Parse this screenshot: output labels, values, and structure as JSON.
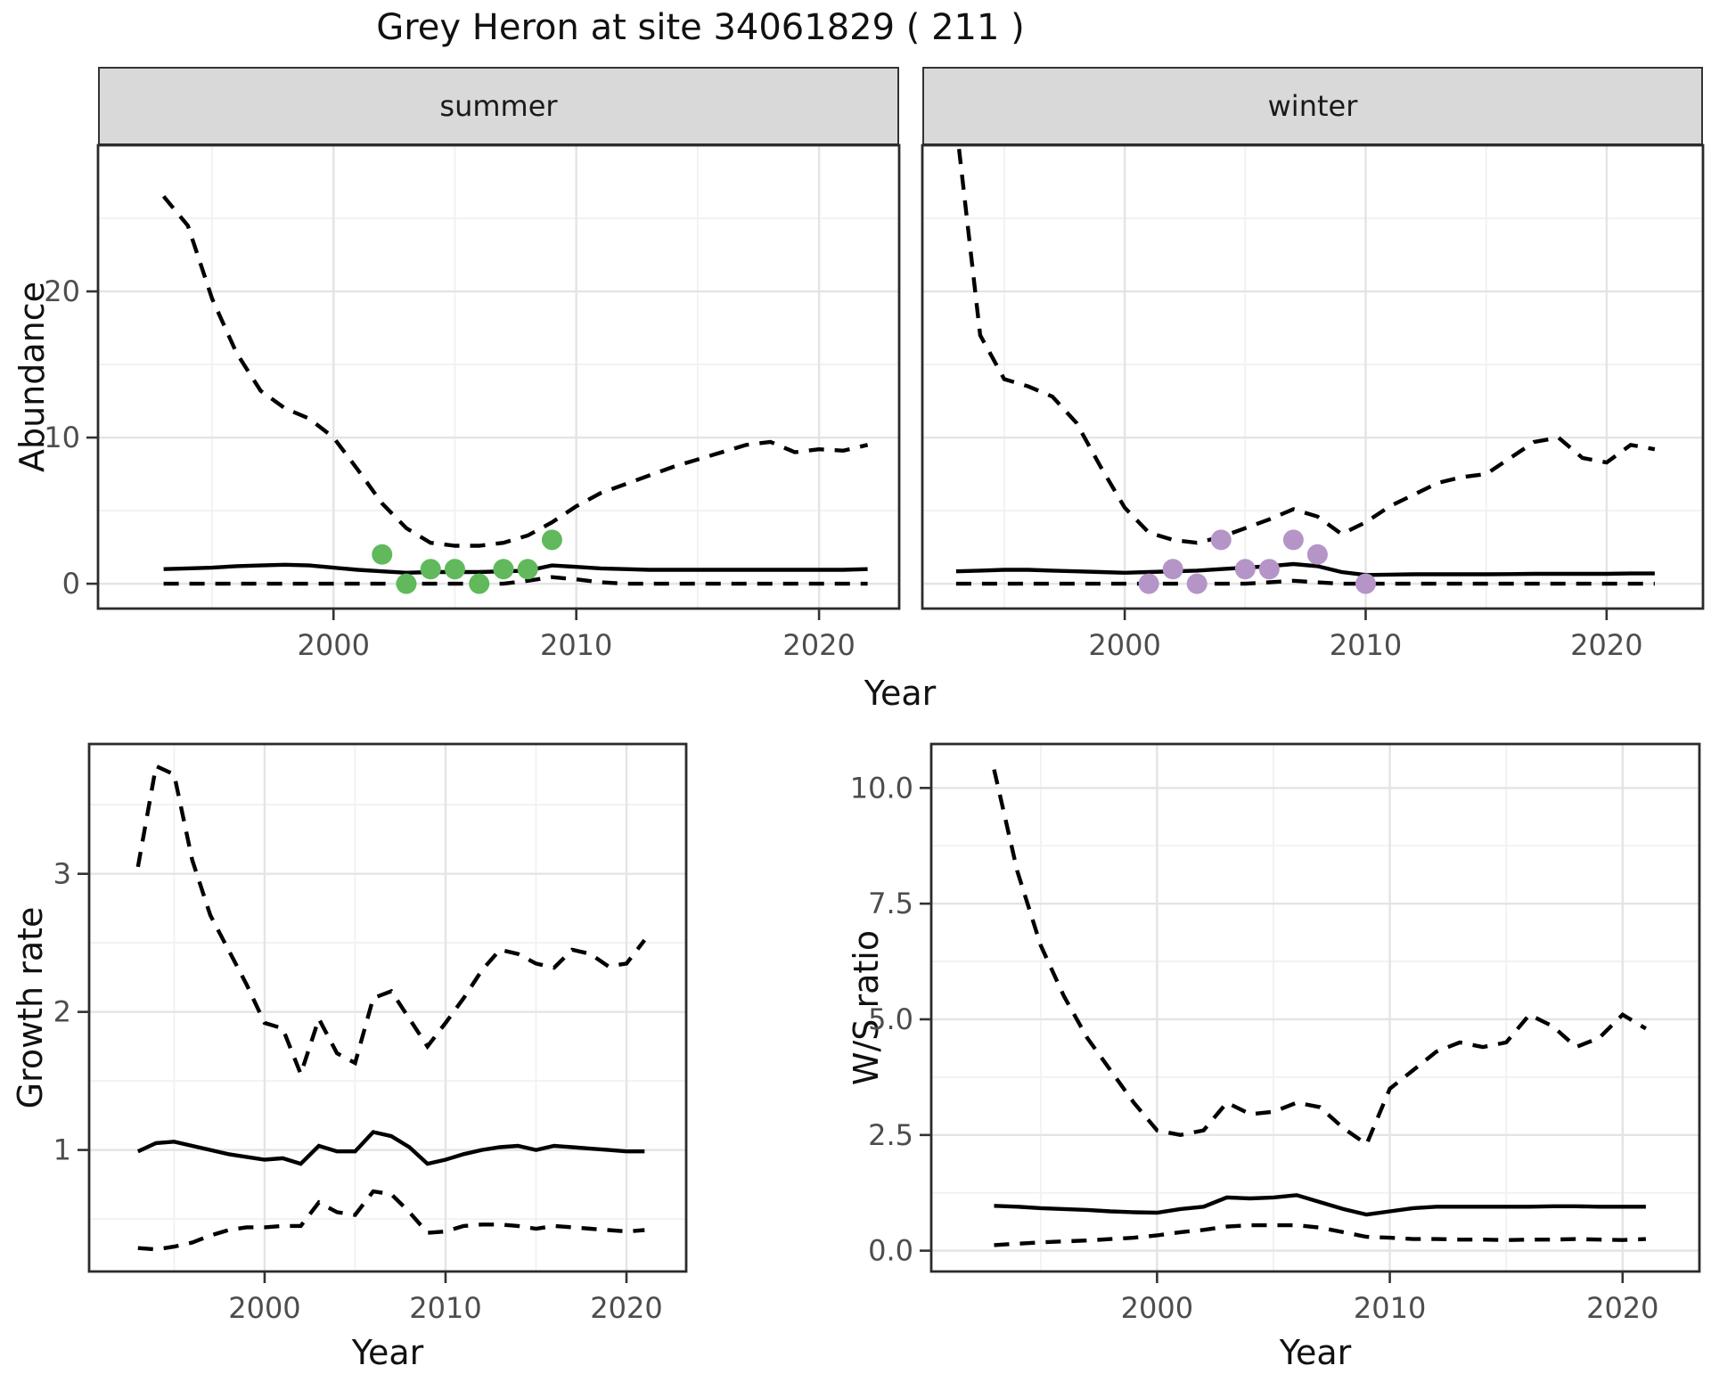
{
  "title": "Grey Heron at site 34061829 ( 211 )",
  "facets": {
    "summer_label": "summer",
    "winter_label": "winter"
  },
  "axes": {
    "x_title_top": "Year",
    "x_title_growth": "Year",
    "x_title_ws": "Year",
    "y_title_abundance": "Abundance",
    "y_title_growth": "Growth rate",
    "y_title_ws": "W/S ratio"
  },
  "colors": {
    "observation_summer": "#61b95c",
    "observation_winter": "#b594c7",
    "line": "#000000",
    "panel_border": "#2b2b2b",
    "strip_bg": "#d9d9d9",
    "grid_major": "#e4e4e4",
    "grid_minor": "#f1f1f1",
    "tick_text": "#4d4d4d",
    "tick_mark": "#333333"
  },
  "chart_data": [
    {
      "id": "summer",
      "type": "line",
      "facet": "summer",
      "xlim": [
        1990.3,
        2023.3
      ],
      "ylim": [
        -1.7,
        30.0
      ],
      "x_ticks": [
        2000,
        2010,
        2020
      ],
      "x_tick_labels": [
        "2000",
        "2010",
        "2020"
      ],
      "x_minor": [
        1995,
        2005,
        2015
      ],
      "y_ticks": [
        0,
        10,
        20
      ],
      "y_tick_labels": [
        "0",
        "10",
        "20"
      ],
      "y_minor": [
        5,
        15,
        25
      ],
      "show_y_ticks": true,
      "years": [
        1993,
        1994,
        1995,
        1996,
        1997,
        1998,
        1999,
        2000,
        2001,
        2002,
        2003,
        2004,
        2005,
        2006,
        2007,
        2008,
        2009,
        2010,
        2011,
        2012,
        2013,
        2014,
        2015,
        2016,
        2017,
        2018,
        2019,
        2020,
        2021,
        2022
      ],
      "series": [
        {
          "name": "upper_ci",
          "style": "dashed",
          "values": [
            26.5,
            24.5,
            19.5,
            15.8,
            13.2,
            12.0,
            11.3,
            10.0,
            7.8,
            5.5,
            3.8,
            2.8,
            2.6,
            2.6,
            2.8,
            3.3,
            4.2,
            5.3,
            6.2,
            6.8,
            7.4,
            8.0,
            8.5,
            9.0,
            9.5,
            9.7,
            9.0,
            9.2,
            9.1,
            9.5
          ]
        },
        {
          "name": "median",
          "style": "solid",
          "values": [
            1.0,
            1.05,
            1.1,
            1.2,
            1.25,
            1.3,
            1.25,
            1.1,
            0.95,
            0.85,
            0.75,
            0.8,
            0.8,
            0.8,
            0.85,
            0.9,
            1.25,
            1.15,
            1.05,
            1.0,
            0.95,
            0.95,
            0.95,
            0.95,
            0.95,
            0.95,
            0.95,
            0.95,
            0.95,
            1.0
          ]
        },
        {
          "name": "lower_ci",
          "style": "dashed",
          "values": [
            0,
            0,
            0,
            0,
            0,
            0,
            0,
            0,
            0,
            0,
            0,
            0,
            0,
            0,
            0,
            0.2,
            0.45,
            0.3,
            0.1,
            0,
            0,
            0,
            0,
            0,
            0,
            0,
            0,
            0,
            0,
            0
          ]
        }
      ],
      "points": {
        "name": "observations",
        "years": [
          2002,
          2003,
          2004,
          2005,
          2006,
          2007,
          2008,
          2009
        ],
        "values": [
          2,
          0,
          1,
          1,
          0,
          1,
          1,
          3
        ],
        "color_key": "observation_summer"
      }
    },
    {
      "id": "winter",
      "type": "line",
      "facet": "winter",
      "xlim": [
        1991.6,
        2024.0
      ],
      "ylim": [
        -1.7,
        30.0
      ],
      "x_ticks": [
        2000,
        2010,
        2020
      ],
      "x_tick_labels": [
        "2000",
        "2010",
        "2020"
      ],
      "x_minor": [
        1995,
        2005,
        2015
      ],
      "y_ticks": [
        0,
        10,
        20
      ],
      "y_tick_labels": [
        "0",
        "10",
        "20"
      ],
      "y_minor": [
        5,
        15,
        25
      ],
      "show_y_ticks": false,
      "years": [
        1993,
        1994,
        1995,
        1996,
        1997,
        1998,
        1999,
        2000,
        2001,
        2002,
        2003,
        2004,
        2005,
        2006,
        2007,
        2008,
        2009,
        2010,
        2011,
        2012,
        2013,
        2014,
        2015,
        2016,
        2017,
        2018,
        2019,
        2020,
        2021,
        2022
      ],
      "series": [
        {
          "name": "upper_ci",
          "style": "dashed",
          "values": [
            31.5,
            17.0,
            14.0,
            13.5,
            12.8,
            11.0,
            8.0,
            5.2,
            3.5,
            3.0,
            2.8,
            3.2,
            3.8,
            4.4,
            5.1,
            4.6,
            3.4,
            4.2,
            5.3,
            6.1,
            6.9,
            7.3,
            7.5,
            8.6,
            9.7,
            10.0,
            8.6,
            8.3,
            9.5,
            9.2
          ]
        },
        {
          "name": "median",
          "style": "solid",
          "values": [
            0.85,
            0.9,
            0.95,
            0.95,
            0.9,
            0.85,
            0.8,
            0.75,
            0.8,
            0.85,
            0.9,
            1.0,
            1.1,
            1.2,
            1.35,
            1.2,
            0.8,
            0.6,
            0.62,
            0.65,
            0.65,
            0.65,
            0.65,
            0.66,
            0.68,
            0.68,
            0.68,
            0.68,
            0.7,
            0.7
          ]
        },
        {
          "name": "lower_ci",
          "style": "dashed",
          "values": [
            0,
            0,
            0,
            0,
            0,
            0,
            0,
            0,
            0,
            0,
            0,
            0,
            0,
            0.1,
            0.2,
            0.1,
            0,
            0,
            0,
            0,
            0,
            0,
            0,
            0,
            0,
            0,
            0,
            0,
            0,
            0
          ]
        }
      ],
      "points": {
        "name": "observations",
        "years": [
          2001,
          2002,
          2003,
          2004,
          2005,
          2006,
          2007,
          2008,
          2010
        ],
        "values": [
          0,
          1,
          0,
          3,
          1,
          1,
          3,
          2,
          0
        ],
        "color_key": "observation_winter"
      }
    },
    {
      "id": "growth",
      "type": "line",
      "facet": null,
      "xlim": [
        1990.3,
        2023.3
      ],
      "ylim": [
        0.12,
        3.94
      ],
      "x_ticks": [
        2000,
        2010,
        2020
      ],
      "x_tick_labels": [
        "2000",
        "2010",
        "2020"
      ],
      "x_minor": [
        1995,
        2005,
        2015
      ],
      "y_ticks": [
        1,
        2,
        3
      ],
      "y_tick_labels": [
        "1",
        "2",
        "3"
      ],
      "y_minor": [
        0.5,
        1.5,
        2.5,
        3.5
      ],
      "show_y_ticks": true,
      "years": [
        1993,
        1994,
        1995,
        1996,
        1997,
        1998,
        1999,
        2000,
        2001,
        2002,
        2003,
        2004,
        2005,
        2006,
        2007,
        2008,
        2009,
        2010,
        2011,
        2012,
        2013,
        2014,
        2015,
        2016,
        2017,
        2018,
        2019,
        2020,
        2021
      ],
      "series": [
        {
          "name": "upper_ci",
          "style": "dashed",
          "values": [
            3.05,
            3.78,
            3.72,
            3.1,
            2.7,
            2.45,
            2.2,
            1.92,
            1.88,
            1.55,
            1.95,
            1.7,
            1.63,
            2.1,
            2.15,
            1.95,
            1.75,
            1.92,
            2.1,
            2.3,
            2.45,
            2.42,
            2.35,
            2.32,
            2.45,
            2.42,
            2.33,
            2.35,
            2.52
          ]
        },
        {
          "name": "median",
          "style": "solid",
          "values": [
            0.99,
            1.05,
            1.06,
            1.03,
            1.0,
            0.97,
            0.95,
            0.93,
            0.94,
            0.9,
            1.03,
            0.99,
            0.99,
            1.13,
            1.1,
            1.02,
            0.9,
            0.93,
            0.97,
            1.0,
            1.02,
            1.03,
            1.0,
            1.03,
            1.02,
            1.01,
            1.0,
            0.99,
            0.99
          ]
        },
        {
          "name": "lower_ci",
          "style": "dashed",
          "values": [
            0.29,
            0.28,
            0.3,
            0.33,
            0.38,
            0.42,
            0.44,
            0.44,
            0.45,
            0.45,
            0.62,
            0.55,
            0.53,
            0.7,
            0.68,
            0.55,
            0.4,
            0.41,
            0.45,
            0.46,
            0.46,
            0.45,
            0.43,
            0.45,
            0.44,
            0.43,
            0.42,
            0.41,
            0.42
          ]
        }
      ],
      "points": null
    },
    {
      "id": "ws",
      "type": "line",
      "facet": null,
      "xlim": [
        1990.3,
        2023.3
      ],
      "ylim": [
        -0.45,
        10.95
      ],
      "x_ticks": [
        2000,
        2010,
        2020
      ],
      "x_tick_labels": [
        "2000",
        "2010",
        "2020"
      ],
      "x_minor": [
        1995,
        2005,
        2015
      ],
      "y_ticks": [
        0,
        2.5,
        5,
        7.5,
        10
      ],
      "y_tick_labels": [
        "0.0",
        "2.5",
        "5.0",
        "7.5",
        "10.0"
      ],
      "y_minor": [
        1.25,
        3.75,
        6.25,
        8.75
      ],
      "show_y_ticks": true,
      "years": [
        1993,
        1994,
        1995,
        1996,
        1997,
        1998,
        1999,
        2000,
        2001,
        2002,
        2003,
        2004,
        2005,
        2006,
        2007,
        2008,
        2009,
        2010,
        2011,
        2012,
        2013,
        2014,
        2015,
        2016,
        2017,
        2018,
        2019,
        2020,
        2021
      ],
      "series": [
        {
          "name": "upper_ci",
          "style": "dashed",
          "values": [
            10.4,
            8.2,
            6.6,
            5.5,
            4.6,
            3.9,
            3.2,
            2.6,
            2.5,
            2.6,
            3.2,
            2.95,
            3.0,
            3.2,
            3.1,
            2.65,
            2.3,
            3.5,
            3.9,
            4.3,
            4.5,
            4.4,
            4.5,
            5.1,
            4.85,
            4.4,
            4.6,
            5.1,
            4.8
          ]
        },
        {
          "name": "median",
          "style": "solid",
          "values": [
            0.97,
            0.95,
            0.92,
            0.9,
            0.88,
            0.85,
            0.83,
            0.82,
            0.9,
            0.95,
            1.15,
            1.13,
            1.15,
            1.2,
            1.05,
            0.9,
            0.78,
            0.85,
            0.92,
            0.95,
            0.95,
            0.95,
            0.95,
            0.95,
            0.96,
            0.96,
            0.95,
            0.95,
            0.95
          ]
        },
        {
          "name": "lower_ci",
          "style": "dashed",
          "values": [
            0.12,
            0.15,
            0.18,
            0.2,
            0.22,
            0.25,
            0.28,
            0.33,
            0.4,
            0.45,
            0.52,
            0.55,
            0.55,
            0.55,
            0.5,
            0.4,
            0.3,
            0.28,
            0.25,
            0.25,
            0.24,
            0.24,
            0.23,
            0.24,
            0.24,
            0.25,
            0.24,
            0.23,
            0.25
          ]
        }
      ],
      "points": null
    }
  ]
}
